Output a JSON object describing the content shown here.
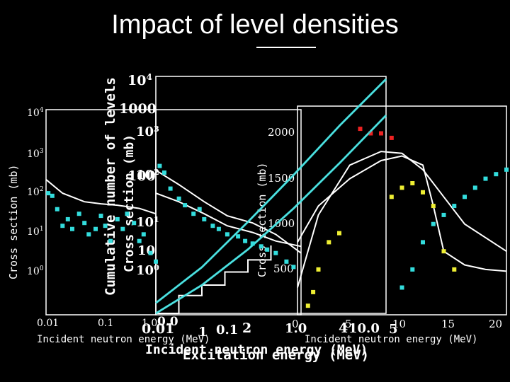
{
  "slide": {
    "title": "Impact of level densities"
  },
  "colors": {
    "background": "#000000",
    "axes": "#ffffff",
    "model": "#ffffff",
    "data_cyan": "#33dddd",
    "data_red": "#ee2222",
    "data_yellow": "#eeee33"
  },
  "chart_data": [
    {
      "id": "panel-a",
      "type": "line",
      "title": "",
      "xlabel": "Incident neutron energy (MeV)",
      "ylabel": "Cross section (mb)",
      "xscale": "log",
      "yscale": "log",
      "xlim": [
        0.01,
        1.0
      ],
      "ylim": [
        1,
        1000
      ],
      "xticks": [
        "0.01",
        "0.1",
        "1.0"
      ],
      "yticks": [
        "10^0",
        "10^1",
        "10^2",
        "10^3",
        "10^4"
      ],
      "series": [
        {
          "kind": "model",
          "x": [
            0.01,
            0.02,
            0.05,
            0.1,
            0.2,
            0.5,
            1.0
          ],
          "y": [
            95,
            60,
            45,
            42,
            40,
            36,
            30
          ]
        },
        {
          "kind": "data",
          "x": [
            0.011,
            0.013,
            0.016,
            0.02,
            0.025,
            0.03,
            0.04,
            0.05,
            0.06,
            0.08,
            0.1,
            0.12,
            0.15,
            0.2,
            0.25,
            0.3,
            0.4,
            0.5,
            0.6,
            0.8,
            1.0
          ],
          "y": [
            60,
            55,
            35,
            20,
            25,
            18,
            30,
            22,
            15,
            18,
            28,
            20,
            12,
            25,
            18,
            30,
            22,
            12,
            15,
            8,
            6
          ]
        }
      ]
    },
    {
      "id": "panel-b",
      "type": "line",
      "title": "",
      "xlabel": "Excitation energy (MeV)",
      "ylabel": "Cumulative number of levels",
      "xscale": "linear",
      "yscale": "log",
      "xlim": [
        0,
        5
      ],
      "ylim": [
        1,
        10000
      ],
      "xticks": [
        "0",
        "1",
        "2",
        "3",
        "4",
        "5"
      ],
      "yticks": [
        "10^0",
        "10^1",
        "10^2",
        "10^3",
        "10^4"
      ],
      "series": [
        {
          "kind": "level-staircase",
          "x": [
            0,
            0.5,
            1.0,
            1.5,
            2.0,
            2.5
          ],
          "y": [
            1,
            2,
            3,
            5,
            8,
            14
          ]
        },
        {
          "kind": "model",
          "x": [
            0,
            1,
            2,
            3,
            4,
            5
          ],
          "y": [
            1,
            3,
            12,
            60,
            350,
            2200
          ]
        },
        {
          "kind": "model",
          "x": [
            0,
            1,
            2,
            3,
            4,
            5
          ],
          "y": [
            1.5,
            6,
            35,
            220,
            1500,
            9000
          ]
        }
      ]
    },
    {
      "id": "panel-c",
      "type": "line",
      "title": "",
      "xlabel": "Incident neutron energy (MeV)",
      "ylabel": "Cross section (mb)",
      "xscale": "log",
      "yscale": "log",
      "xlim": [
        0.01,
        10
      ],
      "ylim": [
        1,
        1000
      ],
      "xticks": [
        "0.01",
        "0.1",
        "1.0",
        "10.0"
      ],
      "yticks": [
        "10^0",
        "10",
        "10^1",
        "10^2",
        "1000"
      ],
      "series": [
        {
          "kind": "model",
          "x": [
            0.01,
            0.03,
            0.1,
            0.3,
            1,
            3,
            10
          ],
          "y": [
            130,
            80,
            45,
            28,
            22,
            15,
            8
          ]
        },
        {
          "kind": "model",
          "x": [
            0.01,
            0.03,
            0.1,
            0.3,
            1,
            3,
            10
          ],
          "y": [
            60,
            45,
            30,
            20,
            16,
            12,
            10
          ]
        },
        {
          "kind": "data",
          "x": [
            0.012,
            0.015,
            0.02,
            0.03,
            0.04,
            0.06,
            0.08,
            0.1,
            0.15,
            0.2,
            0.3,
            0.5,
            0.7,
            1,
            1.5,
            2,
            3,
            5,
            7
          ],
          "y": [
            150,
            120,
            70,
            50,
            40,
            30,
            35,
            25,
            20,
            18,
            15,
            14,
            12,
            11,
            10,
            9,
            8,
            6,
            5
          ]
        }
      ]
    },
    {
      "id": "panel-d",
      "type": "line",
      "title": "",
      "xlabel": "Incident neutron energy (MeV)",
      "ylabel": "Cross section (mb)",
      "xscale": "linear",
      "yscale": "linear",
      "xlim": [
        0,
        20
      ],
      "ylim": [
        0,
        2300
      ],
      "xticks": [
        "0",
        "5",
        "10",
        "15",
        "20"
      ],
      "yticks": [
        "500",
        "1000",
        "1500",
        "2000"
      ],
      "series": [
        {
          "kind": "model",
          "x": [
            0,
            2,
            5,
            8,
            10,
            12,
            13,
            14,
            16,
            18,
            20
          ],
          "y": [
            800,
            1200,
            1500,
            1700,
            1750,
            1650,
            1200,
            700,
            550,
            500,
            480
          ]
        },
        {
          "kind": "model",
          "x": [
            0,
            2,
            5,
            8,
            10,
            12,
            14,
            16,
            20
          ],
          "y": [
            300,
            1100,
            1650,
            1800,
            1780,
            1600,
            1300,
            1000,
            700
          ]
        },
        {
          "kind": "data",
          "x": [
            6,
            7,
            8,
            9
          ],
          "y": [
            2050,
            2000,
            2000,
            1950
          ]
        },
        {
          "kind": "data",
          "x": [
            1,
            1.5,
            2,
            3,
            4,
            9,
            10,
            11,
            12,
            13,
            14,
            15
          ],
          "y": [
            100,
            250,
            500,
            800,
            900,
            1300,
            1400,
            1450,
            1350,
            1200,
            700,
            500
          ]
        },
        {
          "kind": "data",
          "x": [
            10,
            11,
            12,
            13,
            14,
            15,
            16,
            17,
            18,
            19,
            20
          ],
          "y": [
            300,
            500,
            800,
            1000,
            1100,
            1200,
            1300,
            1400,
            1500,
            1550,
            1600
          ]
        }
      ]
    }
  ]
}
